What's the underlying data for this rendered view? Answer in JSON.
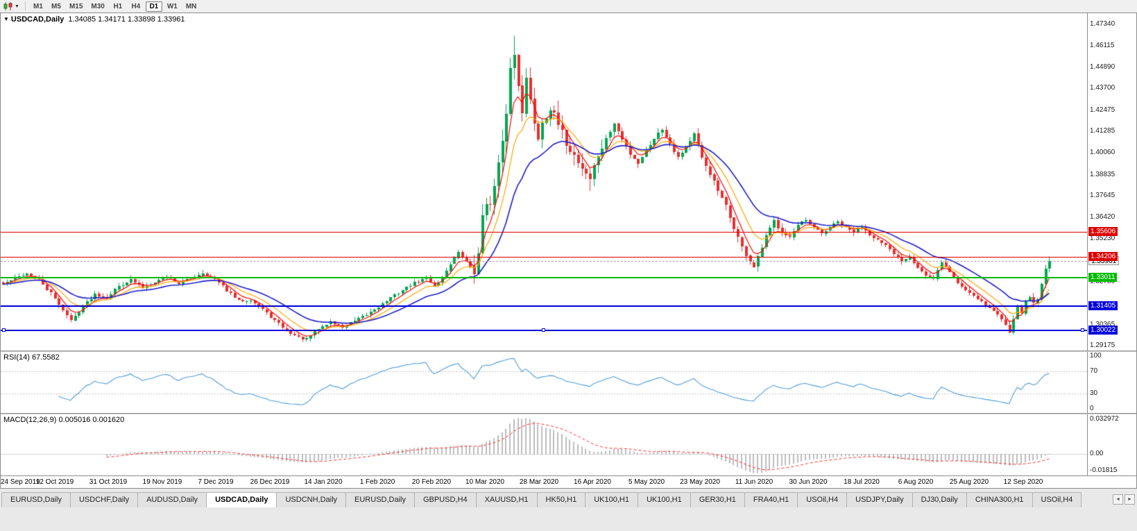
{
  "toolbar": {
    "timeframes": [
      "M1",
      "M5",
      "M15",
      "M30",
      "H1",
      "H4",
      "D1",
      "W1",
      "MN"
    ],
    "active_timeframe": "D1",
    "chart_type_icon": "candlestick-chart-icon"
  },
  "chart_header": {
    "symbol": "USDCAD,Daily",
    "ohlc": "1.34085 1.34171 1.33898 1.33961",
    "open": "1.34085",
    "high": "1.34171",
    "low": "1.33898",
    "close": "1.33961"
  },
  "price_axis": {
    "ticks": [
      1.4734,
      1.46115,
      1.4489,
      1.437,
      1.42475,
      1.41285,
      1.4006,
      1.38835,
      1.37645,
      1.3642,
      1.3523,
      1.3278,
      1.30365,
      1.29175
    ],
    "ylim": [
      1.289,
      1.4795
    ]
  },
  "current_price": {
    "value": 1.33961,
    "label": "1.33961"
  },
  "levels": [
    {
      "value": 1.35606,
      "label": "1.35606",
      "color": "#dd0000",
      "type": "resistance",
      "width": 1,
      "selected": false
    },
    {
      "value": 1.34206,
      "label": "1.34206",
      "color": "#dd0000",
      "type": "resistance",
      "width": 1,
      "selected": false
    },
    {
      "value": 1.33011,
      "label": "1.33011",
      "color": "#00bb00",
      "type": "support",
      "width": 2,
      "selected": false
    },
    {
      "value": 1.31405,
      "label": "1.31405",
      "color": "#0000dd",
      "type": "support",
      "width": 2,
      "selected": false
    },
    {
      "value": 1.30022,
      "label": "1.30022",
      "color": "#0000dd",
      "type": "support",
      "width": 2,
      "selected": true
    }
  ],
  "rsi": {
    "label": "RSI(14) 67.5582",
    "period": 14,
    "value": 67.5582,
    "level_lines": [
      70,
      30
    ],
    "axis": [
      100,
      70,
      30,
      0
    ],
    "color": "#4f9bd8"
  },
  "macd": {
    "label": "MACD(12,26,9) 0.005016 0.001620",
    "fast": 12,
    "slow": 26,
    "signal_period": 9,
    "main_value": 0.005016,
    "signal_value": 0.00162,
    "axis_top": "0.032972",
    "axis_zero": "0.00",
    "axis_bottom": "-0.01815",
    "ylim": [
      -0.0182,
      0.033
    ],
    "bar_color": "#bdbdbd",
    "signal_color": "#ff2d2d"
  },
  "chart_data": {
    "type": "candlestick-ohlc",
    "title": "USDCAD,Daily",
    "symbol": "USDCAD",
    "timeframe": "Daily",
    "count": 263,
    "right_shift_bars": 9,
    "seed": 42,
    "ylim": [
      1.289,
      1.4795
    ],
    "last_close": 1.33961,
    "x_labels": [
      "24 Sep 2019",
      "12 Oct 2019",
      "31 Oct 2019",
      "19 Nov 2019",
      "7 Dec 2019",
      "26 Dec 2019",
      "14 Jan 2020",
      "1 Feb 2020",
      "20 Feb 2020",
      "10 Mar 2020",
      "28 Mar 2020",
      "16 Apr 2020",
      "5 May 2020",
      "23 May 2020",
      "11 Jun 2020",
      "30 Jun 2020",
      "18 Jul 2020",
      "6 Aug 2020",
      "25 Aug 2020",
      "12 Sep 2020"
    ],
    "close_anchors": [
      [
        0,
        1.3265
      ],
      [
        3,
        1.33
      ],
      [
        6,
        1.3325
      ],
      [
        9,
        1.329
      ],
      [
        12,
        1.321
      ],
      [
        15,
        1.312
      ],
      [
        17,
        1.3058
      ],
      [
        20,
        1.314
      ],
      [
        23,
        1.321
      ],
      [
        26,
        1.319
      ],
      [
        29,
        1.3255
      ],
      [
        32,
        1.329
      ],
      [
        35,
        1.3245
      ],
      [
        38,
        1.328
      ],
      [
        41,
        1.331
      ],
      [
        44,
        1.327
      ],
      [
        47,
        1.33
      ],
      [
        50,
        1.333
      ],
      [
        53,
        1.329
      ],
      [
        56,
        1.323
      ],
      [
        59,
        1.317
      ],
      [
        62,
        1.3178
      ],
      [
        65,
        1.312
      ],
      [
        68,
        1.306
      ],
      [
        71,
        1.3
      ],
      [
        74,
        1.2962
      ],
      [
        76,
        1.2952
      ],
      [
        79,
        1.3012
      ],
      [
        82,
        1.3052
      ],
      [
        85,
        1.3022
      ],
      [
        88,
        1.3056
      ],
      [
        91,
        1.3092
      ],
      [
        94,
        1.314
      ],
      [
        97,
        1.3186
      ],
      [
        100,
        1.3232
      ],
      [
        103,
        1.3272
      ],
      [
        106,
        1.3302
      ],
      [
        108,
        1.3252
      ],
      [
        110,
        1.3302
      ],
      [
        112,
        1.3382
      ],
      [
        114,
        1.3442
      ],
      [
        116,
        1.3392
      ],
      [
        118,
        1.3342
      ],
      [
        119,
        1.3422
      ],
      [
        120,
        1.3662
      ],
      [
        121,
        1.3742
      ],
      [
        122,
        1.3702
      ],
      [
        123,
        1.3812
      ],
      [
        124,
        1.3932
      ],
      [
        125,
        1.4052
      ],
      [
        126,
        1.4242
      ],
      [
        127,
        1.4482
      ],
      [
        128,
        1.4562
      ],
      [
        129,
        1.4402
      ],
      [
        130,
        1.4252
      ],
      [
        131,
        1.4422
      ],
      [
        132,
        1.4302
      ],
      [
        133,
        1.4182
      ],
      [
        134,
        1.4092
      ],
      [
        135,
        1.4182
      ],
      [
        137,
        1.4262
      ],
      [
        139,
        1.4162
      ],
      [
        141,
        1.4062
      ],
      [
        143,
        1.3992
      ],
      [
        145,
        1.3922
      ],
      [
        147,
        1.3862
      ],
      [
        149,
        1.3992
      ],
      [
        151,
        1.4082
      ],
      [
        153,
        1.4172
      ],
      [
        155,
        1.4082
      ],
      [
        157,
        1.4002
      ],
      [
        159,
        1.3952
      ],
      [
        161,
        1.4022
      ],
      [
        163,
        1.4092
      ],
      [
        165,
        1.4142
      ],
      [
        167,
        1.4062
      ],
      [
        169,
        1.3982
      ],
      [
        171,
        1.4042
      ],
      [
        173,
        1.4112
      ],
      [
        175,
        1.3972
      ],
      [
        177,
        1.3892
      ],
      [
        179,
        1.3792
      ],
      [
        181,
        1.3702
      ],
      [
        183,
        1.3582
      ],
      [
        185,
        1.3472
      ],
      [
        187,
        1.3392
      ],
      [
        188,
        1.3362
      ],
      [
        189,
        1.3412
      ],
      [
        191,
        1.3532
      ],
      [
        193,
        1.3622
      ],
      [
        195,
        1.3562
      ],
      [
        197,
        1.3532
      ],
      [
        199,
        1.3592
      ],
      [
        201,
        1.3622
      ],
      [
        203,
        1.3582
      ],
      [
        205,
        1.3548
      ],
      [
        207,
        1.3588
      ],
      [
        209,
        1.3618
      ],
      [
        211,
        1.3582
      ],
      [
        213,
        1.3558
      ],
      [
        215,
        1.3592
      ],
      [
        217,
        1.3548
      ],
      [
        219,
        1.3512
      ],
      [
        221,
        1.3478
      ],
      [
        223,
        1.3432
      ],
      [
        225,
        1.3398
      ],
      [
        227,
        1.3422
      ],
      [
        229,
        1.3362
      ],
      [
        231,
        1.3312
      ],
      [
        233,
        1.3292
      ],
      [
        235,
        1.3392
      ],
      [
        237,
        1.3332
      ],
      [
        239,
        1.3272
      ],
      [
        241,
        1.3232
      ],
      [
        243,
        1.3202
      ],
      [
        245,
        1.3168
      ],
      [
        247,
        1.3132
      ],
      [
        249,
        1.3092
      ],
      [
        251,
        1.3042
      ],
      [
        252,
        1.3002
      ],
      [
        253,
        1.3072
      ],
      [
        254,
        1.3132
      ],
      [
        255,
        1.3108
      ],
      [
        256,
        1.3162
      ],
      [
        257,
        1.3192
      ],
      [
        258,
        1.3158
      ],
      [
        259,
        1.3188
      ],
      [
        260,
        1.3262
      ],
      [
        261,
        1.3362
      ],
      [
        262,
        1.3396
      ]
    ],
    "extremes": {
      "high_index": 128,
      "high": 1.4668,
      "low_index": 76,
      "low": 1.2951,
      "sep_low_index": 252,
      "sep_low": 1.2994,
      "last_high": 1.3421
    },
    "volatility_zones": [
      [
        0,
        117,
        0.0026
      ],
      [
        118,
        150,
        0.009
      ],
      [
        151,
        200,
        0.004
      ],
      [
        201,
        248,
        0.0028
      ],
      [
        249,
        262,
        0.0034
      ]
    ],
    "candle_up_color": "#00A651",
    "candle_down_color": "#E53030",
    "moving_averages": [
      {
        "name": "ma-fast",
        "period": 5,
        "color": "#ff0000"
      },
      {
        "name": "ma-mid",
        "period": 10,
        "color": "#ffa500"
      },
      {
        "name": "ma-slow",
        "period": 21,
        "color": "#1c1cc8"
      }
    ]
  },
  "tabs": {
    "items": [
      "EURUSD,Daily",
      "USDCHF,Daily",
      "AUDUSD,Daily",
      "USDCAD,Daily",
      "USDCNH,Daily",
      "EURUSD,Daily",
      "GBPUSD,H4",
      "XAUUSD,H1",
      "HK50,H1",
      "UK100,H1",
      "UK100,H1",
      "GER30,H1",
      "FRA40,H1",
      "USOil,H4",
      "USDJPY,Daily",
      "DJ30,Daily",
      "CHINA300,H1",
      "USOil,H4"
    ],
    "active_index": 3
  }
}
